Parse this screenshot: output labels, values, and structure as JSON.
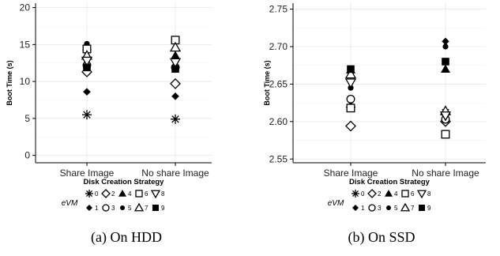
{
  "chart_data": [
    {
      "type": "scatter",
      "caption": "(a) On HDD",
      "xlabel": "Disk Creation Strategy",
      "ylabel": "Boot Time (s)",
      "categories": [
        "Share Image",
        "No share Image"
      ],
      "ylim": [
        -1,
        20.6
      ],
      "yticks": [
        "0",
        "5",
        "10",
        "15",
        "20"
      ],
      "ytick_values": [
        0,
        5,
        10,
        15,
        20
      ],
      "grid": true,
      "legend_title": "eVM",
      "series": [
        {
          "name": "0",
          "values": [
            5.5,
            4.9
          ]
        },
        {
          "name": "1",
          "values": [
            8.6,
            8.0
          ]
        },
        {
          "name": "2",
          "values": [
            11.3,
            9.7
          ]
        },
        {
          "name": "3",
          "values": [
            12.2,
            11.9
          ]
        },
        {
          "name": "4",
          "values": [
            14.7,
            13.5
          ]
        },
        {
          "name": "5",
          "values": [
            15.1,
            13.2
          ]
        },
        {
          "name": "6",
          "values": [
            14.4,
            15.6
          ]
        },
        {
          "name": "7",
          "values": [
            13.5,
            14.6
          ]
        },
        {
          "name": "8",
          "values": [
            12.8,
            12.6
          ]
        },
        {
          "name": "9",
          "values": [
            11.9,
            11.7
          ]
        }
      ]
    },
    {
      "type": "scatter",
      "caption": "(b) On SSD",
      "xlabel": "Disk Creation Strategy",
      "ylabel": "Boot Time (s)",
      "categories": [
        "Share Image",
        "No share Image"
      ],
      "ylim": [
        2.545,
        2.758
      ],
      "yticks": [
        "2.55",
        "2.60",
        "2.65",
        "2.70",
        "2.75"
      ],
      "ytick_values": [
        2.55,
        2.6,
        2.65,
        2.7,
        2.75
      ],
      "grid": true,
      "legend_title": "eVM",
      "series": [
        {
          "name": "0",
          "values": [
            2.619,
            2.612
          ]
        },
        {
          "name": "1",
          "values": [
            2.621,
            2.707
          ]
        },
        {
          "name": "2",
          "values": [
            2.594,
            2.6
          ]
        },
        {
          "name": "3",
          "values": [
            2.63,
            2.603
          ]
        },
        {
          "name": "4",
          "values": [
            2.669,
            2.67
          ]
        },
        {
          "name": "5",
          "values": [
            2.645,
            2.7
          ]
        },
        {
          "name": "6",
          "values": [
            2.618,
            2.583
          ]
        },
        {
          "name": "7",
          "values": [
            2.663,
            2.614
          ]
        },
        {
          "name": "8",
          "values": [
            2.652,
            2.608
          ]
        },
        {
          "name": "9",
          "values": [
            2.67,
            2.68
          ]
        }
      ]
    }
  ]
}
